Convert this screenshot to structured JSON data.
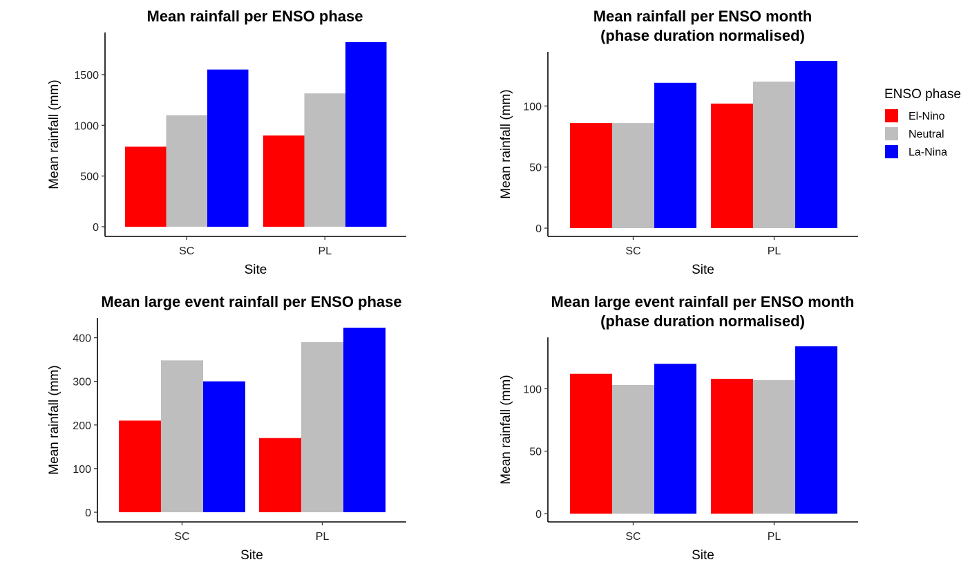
{
  "legend": {
    "title": "ENSO phase",
    "items": [
      {
        "name": "El-Nino",
        "color": "#ff0000"
      },
      {
        "name": "Neutral",
        "color": "#bebebe"
      },
      {
        "name": "La-Nina",
        "color": "#0000ff"
      }
    ]
  },
  "chart_data": [
    {
      "type": "bar",
      "title": [
        "Mean rainfall per ENSO phase"
      ],
      "xlabel": "Site",
      "ylabel": "Mean  rainfall  (mm)",
      "categories": [
        "SC",
        "PL"
      ],
      "ylim": [
        0,
        1820
      ],
      "yticks": [
        0,
        500,
        1000,
        1500
      ],
      "grid": false,
      "series": [
        {
          "name": "El-Nino",
          "values": [
            790,
            900
          ]
        },
        {
          "name": "Neutral",
          "values": [
            1100,
            1315
          ]
        },
        {
          "name": "La-Nina",
          "values": [
            1550,
            1820
          ]
        }
      ]
    },
    {
      "type": "bar",
      "title": [
        "Mean rainfall per ENSO month",
        "(phase duration normalised)"
      ],
      "xlabel": "Site",
      "ylabel": "Mean  rainfall  (mm)",
      "categories": [
        "SC",
        "PL"
      ],
      "ylim": [
        0,
        137
      ],
      "yticks": [
        0,
        50,
        100
      ],
      "grid": false,
      "series": [
        {
          "name": "El-Nino",
          "values": [
            86,
            102
          ]
        },
        {
          "name": "Neutral",
          "values": [
            86,
            120
          ]
        },
        {
          "name": "La-Nina",
          "values": [
            119,
            137
          ]
        }
      ]
    },
    {
      "type": "bar",
      "title": [
        "Mean large event rainfall per ENSO phase"
      ],
      "xlabel": "Site",
      "ylabel": "Mean  rainfall  (mm)",
      "categories": [
        "SC",
        "PL"
      ],
      "ylim": [
        0,
        423
      ],
      "yticks": [
        0,
        100,
        200,
        300,
        400
      ],
      "grid": false,
      "series": [
        {
          "name": "El-Nino",
          "values": [
            210,
            170
          ]
        },
        {
          "name": "Neutral",
          "values": [
            348,
            390
          ]
        },
        {
          "name": "La-Nina",
          "values": [
            300,
            423
          ]
        }
      ]
    },
    {
      "type": "bar",
      "title": [
        "Mean large event rainfall per ENSO month",
        "(phase duration normalised)"
      ],
      "xlabel": "Site",
      "ylabel": "Mean  rainfall  (mm)",
      "categories": [
        "SC",
        "PL"
      ],
      "ylim": [
        0,
        134
      ],
      "yticks": [
        0,
        50,
        100
      ],
      "grid": false,
      "series": [
        {
          "name": "El-Nino",
          "values": [
            112,
            108
          ]
        },
        {
          "name": "Neutral",
          "values": [
            103,
            107
          ]
        },
        {
          "name": "La-Nina",
          "values": [
            120,
            134
          ]
        }
      ]
    }
  ]
}
